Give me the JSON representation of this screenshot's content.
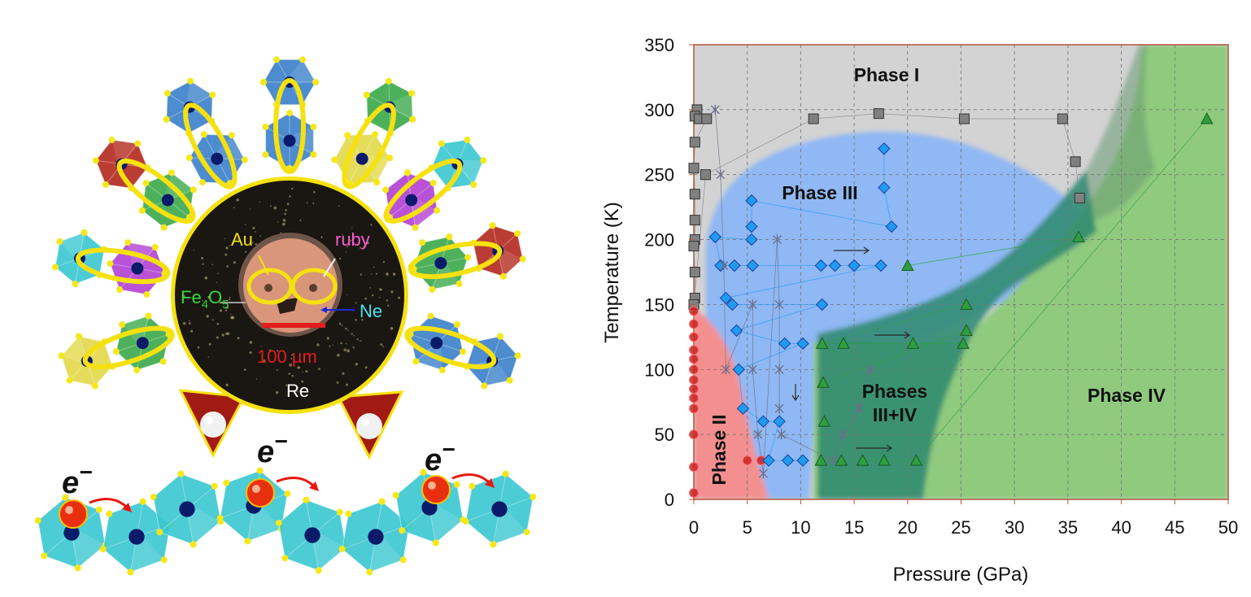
{
  "illustration": {
    "labels": {
      "au": "Au",
      "ruby": "ruby",
      "fe4o5_main": "Fe",
      "fe4o5_sub1": "4",
      "fe4o5_mid": "O",
      "fe4o5_sub2": "5",
      "ne": "Ne",
      "scale": "100 µm",
      "re": "Re",
      "electron": "e",
      "electron_sup": "−"
    },
    "colors": {
      "sample_disk": "#1a1612",
      "gasket_hole": "#d9967a",
      "scale_bar": "#e11d1d",
      "ring": "#f5e10f",
      "octahedron_cyan": "#39c7cf",
      "octahedron_blue": "#3a7fc9",
      "octahedron_green": "#3aa84a",
      "octahedron_yellow": "#e2d84a",
      "octahedron_purple": "#b13fd1",
      "octahedron_red": "#b3281e",
      "electron": "#e8300f"
    }
  },
  "chart_data": {
    "type": "scatter",
    "title": "",
    "xlabel": "Pressure (GPa)",
    "ylabel": "Temperature (K)",
    "xlim": [
      0,
      50
    ],
    "ylim": [
      0,
      350
    ],
    "xticks": [
      0,
      5,
      10,
      15,
      20,
      25,
      30,
      35,
      40,
      45,
      50
    ],
    "yticks": [
      0,
      50,
      100,
      150,
      200,
      250,
      300,
      350
    ],
    "grid": true,
    "regions": [
      {
        "label": "Phase I",
        "color": "#d0d0d0"
      },
      {
        "label": "Phase III",
        "color": "#8fb8f4"
      },
      {
        "label": "Phases",
        "label2": "III+IV",
        "color": "#2f8a72"
      },
      {
        "label": "Phase IV",
        "color": "#8fca7e"
      },
      {
        "label": "Phase II",
        "color": "#f48f8f"
      }
    ],
    "series": [
      {
        "color": "#808080",
        "marker": "square",
        "points": [
          [
            0.3,
            300
          ],
          [
            0.1,
            295
          ],
          [
            0.5,
            293
          ],
          [
            1.2,
            293
          ],
          [
            0.1,
            275
          ],
          [
            0,
            255
          ],
          [
            0.1,
            235
          ],
          [
            0.1,
            215
          ],
          [
            0.1,
            200
          ],
          [
            0,
            195
          ],
          [
            0.1,
            175
          ],
          [
            0.1,
            155
          ],
          [
            0,
            150
          ],
          [
            1.1,
            250
          ],
          [
            11.2,
            293
          ],
          [
            17.3,
            297
          ],
          [
            25.3,
            293
          ],
          [
            34.5,
            293
          ],
          [
            35.7,
            260
          ],
          [
            36.1,
            232
          ]
        ]
      },
      {
        "color": "#cc2222",
        "marker": "circle",
        "points": [
          [
            0,
            145
          ],
          [
            0,
            135
          ],
          [
            0,
            125
          ],
          [
            0,
            115
          ],
          [
            0,
            108
          ],
          [
            0,
            100
          ],
          [
            0,
            92
          ],
          [
            0,
            85
          ],
          [
            0,
            78
          ],
          [
            0,
            70
          ],
          [
            0,
            50
          ],
          [
            0,
            25
          ],
          [
            0,
            5
          ],
          [
            5,
            30
          ],
          [
            6.3,
            30
          ]
        ]
      },
      {
        "color": "#1f9bf0",
        "marker": "diamond",
        "points": [
          [
            17.8,
            270
          ],
          [
            17.8,
            240
          ],
          [
            18.5,
            210
          ],
          [
            5.4,
            230
          ],
          [
            5.4,
            210
          ],
          [
            5.4,
            200
          ],
          [
            2,
            202
          ],
          [
            2.5,
            180
          ],
          [
            3.8,
            180
          ],
          [
            5.5,
            180
          ],
          [
            11.9,
            180
          ],
          [
            13.2,
            180
          ],
          [
            15,
            180
          ],
          [
            17.5,
            180
          ],
          [
            3,
            155
          ],
          [
            3.6,
            150
          ],
          [
            12,
            150
          ],
          [
            4,
            130
          ],
          [
            8.5,
            120
          ],
          [
            10.2,
            120
          ],
          [
            4.2,
            100
          ],
          [
            4.6,
            70
          ],
          [
            6.5,
            60
          ],
          [
            8,
            60
          ],
          [
            7,
            30
          ],
          [
            8.8,
            30
          ],
          [
            10.2,
            30
          ]
        ]
      },
      {
        "color": "#2e9e3e",
        "marker": "triangle",
        "points": [
          [
            20,
            180
          ],
          [
            36,
            202
          ],
          [
            25.5,
            150
          ],
          [
            12,
            120
          ],
          [
            14,
            120
          ],
          [
            20.5,
            120
          ],
          [
            25.2,
            120
          ],
          [
            25.5,
            130
          ],
          [
            12.1,
            90
          ],
          [
            12.2,
            60
          ],
          [
            11.9,
            30
          ],
          [
            13.8,
            30
          ],
          [
            15.8,
            30
          ],
          [
            17.8,
            30
          ],
          [
            20.8,
            30
          ],
          [
            48,
            293
          ]
        ]
      },
      {
        "color": "#6b6f8a",
        "marker": "cross",
        "points": [
          [
            2,
            300
          ],
          [
            2.5,
            250
          ],
          [
            2.8,
            180
          ],
          [
            3,
            100
          ],
          [
            5.5,
            150
          ],
          [
            5.5,
            100
          ],
          [
            6,
            50
          ],
          [
            6.5,
            20
          ],
          [
            7.8,
            200
          ],
          [
            8,
            150
          ],
          [
            8,
            100
          ],
          [
            8,
            70
          ],
          [
            8.2,
            50
          ],
          [
            13,
            30
          ],
          [
            14,
            50
          ],
          [
            15.5,
            70
          ],
          [
            16.5,
            100
          ]
        ]
      }
    ]
  }
}
